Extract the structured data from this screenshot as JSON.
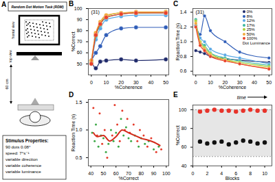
{
  "diagram": {
    "panel": "A",
    "title": "Random Dot Motion Task (RDM)",
    "views": {
      "frontal": "frontal view",
      "top": "top view"
    },
    "distance": "60 cm",
    "stimulus": {
      "heading": "Stimulus Properties:",
      "lines": [
        "90 dots 0.08°",
        "speed: 7°s⁻¹",
        "variable direction",
        "variable coherence",
        "variable luminance"
      ]
    }
  },
  "chart_data": [
    {
      "panel": "B",
      "type": "line",
      "marker": "circle",
      "x_label": "%Coherence",
      "y_label": "%Correct",
      "annotation": "(31)",
      "x": [
        0,
        3,
        6,
        10,
        20,
        30,
        50
      ],
      "series": [
        {
          "name": "0%",
          "color": "#1f2a6b",
          "values": [
            53,
            46,
            52,
            53,
            54,
            53,
            54
          ]
        },
        {
          "name": "8%",
          "color": "#2f5db8",
          "values": [
            53,
            60,
            66,
            76,
            82,
            83,
            83
          ]
        },
        {
          "name": "12%",
          "color": "#5aa9e6",
          "values": [
            50,
            72,
            82,
            90,
            93,
            94,
            94
          ]
        },
        {
          "name": "17%",
          "color": "#3cb8a0",
          "values": [
            51,
            75,
            85,
            92,
            95,
            96,
            96
          ]
        },
        {
          "name": "25%",
          "color": "#a9cf3a",
          "values": [
            52,
            77,
            87,
            93,
            96,
            96,
            97
          ]
        },
        {
          "name": "50%",
          "color": "#f2a93b",
          "values": [
            53,
            78,
            88,
            94,
            96,
            97,
            97
          ]
        },
        {
          "name": "100%",
          "color": "#e8432a",
          "values": [
            50,
            76,
            86,
            92,
            95,
            96,
            96
          ]
        }
      ],
      "xlim": [
        -2,
        52
      ],
      "xticks": [
        0,
        10,
        20,
        30,
        40,
        50
      ],
      "ylim": [
        40,
        100
      ],
      "yticks": [
        50,
        60,
        70,
        80,
        90,
        100
      ],
      "grid": false
    },
    {
      "panel": "C",
      "type": "line",
      "marker": "circle",
      "x_label": "%Coherence",
      "y_label": "Reaction Time (s)",
      "annotation": "(31)",
      "legend": "top-right",
      "legend_title": "Dot Luminance",
      "x": [
        0,
        3,
        6,
        10,
        20,
        30,
        50
      ],
      "series": [
        {
          "name": "0%",
          "color": "#1f2a6b",
          "values": [
            0.88,
            0.86,
            0.84,
            0.8,
            0.77,
            0.75,
            0.72
          ]
        },
        {
          "name": "8%",
          "color": "#2f5db8",
          "values": [
            1.22,
            1.1,
            1.35,
            1.15,
            1.0,
            0.86,
            0.78
          ]
        },
        {
          "name": "12%",
          "color": "#5aa9e6",
          "values": [
            1.2,
            1.05,
            1.0,
            0.9,
            0.82,
            0.78,
            0.7
          ]
        },
        {
          "name": "17%",
          "color": "#3cb8a0",
          "values": [
            1.3,
            1.0,
            0.95,
            0.85,
            0.78,
            0.74,
            0.68
          ]
        },
        {
          "name": "25%",
          "color": "#a9cf3a",
          "values": [
            1.28,
            1.0,
            0.92,
            0.84,
            0.76,
            0.72,
            0.66
          ]
        },
        {
          "name": "50%",
          "color": "#f2a93b",
          "values": [
            1.25,
            0.98,
            0.9,
            0.82,
            0.75,
            0.7,
            0.64
          ]
        },
        {
          "name": "100%",
          "color": "#e8432a",
          "values": [
            1.2,
            0.95,
            0.88,
            0.8,
            0.74,
            0.7,
            0.63
          ]
        }
      ],
      "xlim": [
        -2,
        52
      ],
      "xticks": [
        0,
        10,
        20,
        30,
        40,
        50
      ],
      "ylim": [
        0.55,
        1.45
      ],
      "yticks": [
        0.6,
        0.8,
        {
          "value": 1,
          "label": "1.0"
        },
        1.2,
        1.4
      ],
      "grid": false
    },
    {
      "panel": "D",
      "type": "scatter",
      "x_label": "%Correct",
      "y_label": "Reaction Time (s)",
      "series": [
        {
          "color": "#3aa845",
          "x": [
            41,
            43,
            44,
            46,
            48,
            50,
            52,
            54,
            56,
            58,
            60,
            62,
            64,
            66,
            68,
            70,
            72,
            75,
            78,
            80,
            83,
            86,
            90,
            94
          ],
          "values": [
            0.95,
            0.8,
            1.1,
            0.7,
            0.9,
            0.85,
            0.6,
            0.75,
            1.0,
            0.8,
            0.95,
            0.7,
            1.2,
            0.9,
            1.05,
            0.85,
            0.8,
            0.9,
            0.7,
            0.85,
            0.75,
            0.8,
            0.65,
            0.7
          ]
        },
        {
          "color": "#e53a2a",
          "x": [
            42,
            45,
            47,
            49,
            51,
            53,
            57,
            59,
            61,
            63,
            65,
            67,
            69,
            71,
            74,
            77,
            79,
            82,
            85,
            88,
            92,
            96
          ],
          "values": [
            1.4,
            0.9,
            1.3,
            0.75,
            1.0,
            0.5,
            0.9,
            1.45,
            1.1,
            0.8,
            1.35,
            1.0,
            1.2,
            0.95,
            1.1,
            0.8,
            1.0,
            0.9,
            0.7,
            0.85,
            0.6,
            0.65
          ]
        },
        {
          "type": "line",
          "color": "#d42a1a",
          "x": [
            42,
            45,
            50,
            55,
            60,
            65,
            70,
            75,
            80,
            85,
            90,
            95
          ],
          "values": [
            0.95,
            0.88,
            0.9,
            0.8,
            0.88,
            1.0,
            0.95,
            0.9,
            0.85,
            0.82,
            0.78,
            0.72
          ]
        }
      ],
      "xlim": [
        38,
        102
      ],
      "xticks": [
        40,
        50,
        60,
        70,
        80,
        90,
        100
      ],
      "ylim": [
        0.35,
        1.55
      ],
      "yticks": [
        0.5,
        {
          "value": 1,
          "label": "1.0"
        },
        1.5
      ],
      "grid": false
    },
    {
      "panel": "E",
      "type": "scatter",
      "x_label": "Blocks",
      "y_label": "%Correct",
      "annotation": "time",
      "x": [
        1,
        2,
        3,
        4,
        5,
        6,
        7,
        8,
        9,
        10
      ],
      "series": [
        {
          "color": "#e8332a",
          "values": [
            98,
            99,
            100,
            99,
            99,
            98,
            99,
            100,
            99,
            99
          ]
        },
        {
          "color": "#111111",
          "values": [
            66,
            64,
            65,
            66,
            63,
            65,
            67,
            66,
            64,
            65
          ]
        }
      ],
      "band": [
        50,
        100
      ],
      "xlim": [
        0,
        11
      ],
      "xticks": [
        0,
        2,
        4,
        6,
        8,
        10
      ],
      "ylim": [
        40,
        105
      ],
      "yticks": [
        40,
        60,
        80,
        100
      ],
      "grid": false
    }
  ]
}
